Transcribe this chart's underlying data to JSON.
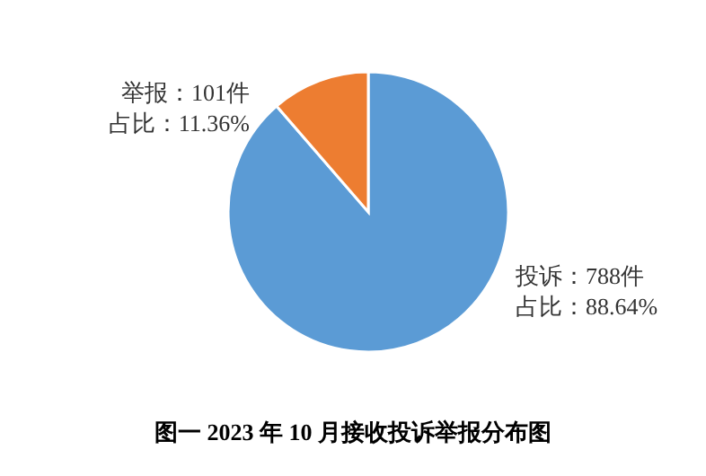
{
  "chart_data": {
    "type": "pie",
    "title": "图一 2023 年 10 月接收投诉举报分布图",
    "categories": [
      "投诉",
      "举报"
    ],
    "values": [
      788,
      101
    ],
    "colors": [
      "#5b9bd5",
      "#ed7d31"
    ],
    "value_labels": [
      "：788件",
      "：101件"
    ],
    "annotations": [
      "占比：88.64%",
      "占比：11.36%"
    ],
    "legend": false
  }
}
